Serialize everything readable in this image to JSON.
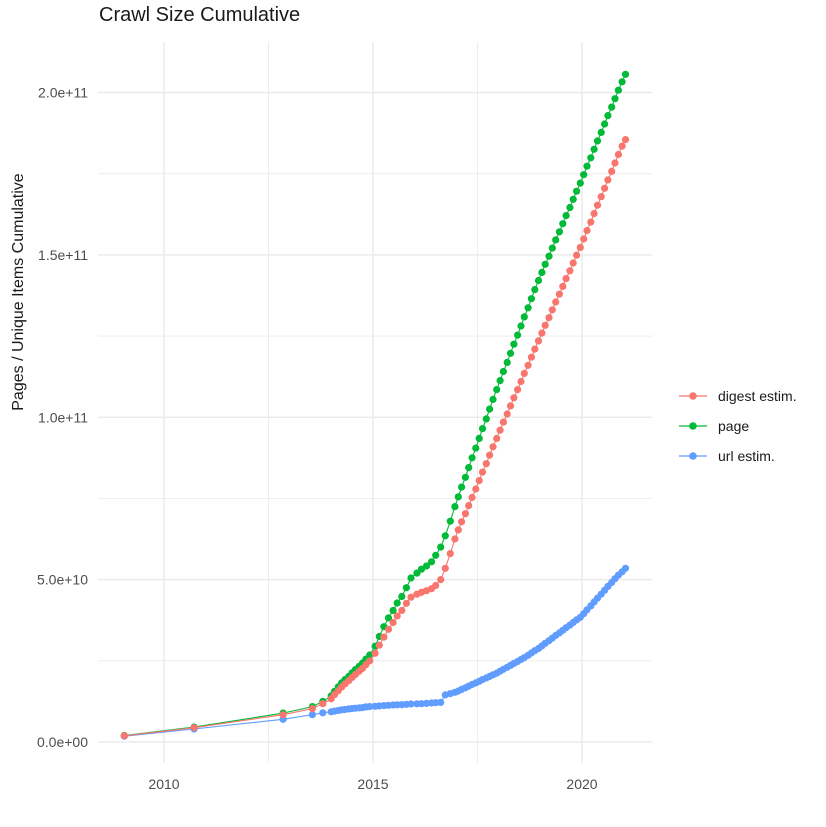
{
  "chart": {
    "title": "Crawl Size Cumulative",
    "ylabel": "Pages / Unique Items Cumulative",
    "xlabel": ""
  },
  "colors": {
    "digest": "#F8766D",
    "page": "#00BA38",
    "url": "#619CFF",
    "grid": "#EBEBEB",
    "tick_text": "#4d4d4d",
    "background": "#FFFFFF"
  },
  "chart_data": {
    "type": "line",
    "title": "Crawl Size Cumulative",
    "xlabel": "",
    "ylabel": "Pages / Unique Items Cumulative",
    "value_unit": "billions (1e9); y-axis shown in scientific notation",
    "grid": "major and minor, light gray on white",
    "legend_position": "right",
    "x_axis": {
      "ticks": [
        {
          "label": "2010",
          "value": 2010
        },
        {
          "label": "2015",
          "value": 2015
        },
        {
          "label": "2020",
          "value": 2020
        }
      ],
      "minor_ticks": [
        2012.5,
        2017.5
      ],
      "range": [
        2008.4,
        2021.7
      ]
    },
    "y_axis": {
      "ticks": [
        {
          "label": "0.0e+00",
          "value": 0
        },
        {
          "label": "5.0e+10",
          "value": 50
        },
        {
          "label": "1.0e+11",
          "value": 100
        },
        {
          "label": "1.5e+11",
          "value": 150
        },
        {
          "label": "2.0e+11",
          "value": 200
        }
      ],
      "minor_ticks": [
        25,
        75,
        125,
        175
      ],
      "range": [
        0,
        215.5
      ]
    },
    "legend": [
      {
        "label": "digest estim.",
        "series": "digest"
      },
      {
        "label": "page",
        "series": "page"
      },
      {
        "label": "url estim.",
        "series": "url"
      }
    ],
    "draw_order": [
      "page",
      "url",
      "digest"
    ],
    "x": [
      2009.05,
      2010.72,
      2012.85,
      2013.55,
      2013.8,
      2014.0,
      2014.08,
      2014.17,
      2014.25,
      2014.33,
      2014.42,
      2014.5,
      2014.58,
      2014.67,
      2014.75,
      2014.83,
      2014.92,
      2015.05,
      2015.15,
      2015.26,
      2015.37,
      2015.48,
      2015.58,
      2015.69,
      2015.8,
      2015.91,
      2016.05,
      2016.16,
      2016.28,
      2016.4,
      2016.5,
      2016.62,
      2016.73,
      2016.85,
      2016.96,
      2017.04,
      2017.12,
      2017.21,
      2017.29,
      2017.37,
      2017.46,
      2017.54,
      2017.62,
      2017.71,
      2017.79,
      2017.87,
      2017.96,
      2018.04,
      2018.12,
      2018.21,
      2018.29,
      2018.37,
      2018.46,
      2018.54,
      2018.62,
      2018.71,
      2018.79,
      2018.87,
      2018.96,
      2019.04,
      2019.12,
      2019.21,
      2019.29,
      2019.37,
      2019.46,
      2019.54,
      2019.62,
      2019.71,
      2019.79,
      2019.87,
      2019.96,
      2020.04,
      2020.12,
      2020.21,
      2020.29,
      2020.37,
      2020.46,
      2020.54,
      2020.62,
      2020.71,
      2020.79,
      2020.87,
      2020.96,
      2021.04
    ],
    "series": [
      {
        "name": "page",
        "color_key": "page",
        "values": [
          2.0,
          4.6,
          8.9,
          10.9,
          12.5,
          14.2,
          15.6,
          17.0,
          18.2,
          19.2,
          20.2,
          21.3,
          22.3,
          23.3,
          24.3,
          25.5,
          26.8,
          29.5,
          32.5,
          35.5,
          38.2,
          40.5,
          42.8,
          44.8,
          47.5,
          50.5,
          52.0,
          53.2,
          54.2,
          55.5,
          57.5,
          60.0,
          63.5,
          68.0,
          72.5,
          75.5,
          78.5,
          81.5,
          84.5,
          87.5,
          90.5,
          93.5,
          96.5,
          99.5,
          102.5,
          105.5,
          108.5,
          111.3,
          114.1,
          116.9,
          119.7,
          122.5,
          125.3,
          128.1,
          130.9,
          133.7,
          136.5,
          139.3,
          142.1,
          144.6,
          147.1,
          149.6,
          152.1,
          154.6,
          157.1,
          159.6,
          162.1,
          164.6,
          167.1,
          169.6,
          172.1,
          174.7,
          177.3,
          179.9,
          182.5,
          185.1,
          187.7,
          190.3,
          192.9,
          195.5,
          198.1,
          200.7,
          203.3,
          205.6
        ]
      },
      {
        "name": "url",
        "color_key": "url",
        "values": [
          1.8,
          4.0,
          7.0,
          8.4,
          9.0,
          9.3,
          9.5,
          9.7,
          9.9,
          10.0,
          10.2,
          10.3,
          10.4,
          10.5,
          10.6,
          10.8,
          10.9,
          11.0,
          11.1,
          11.2,
          11.3,
          11.4,
          11.45,
          11.5,
          11.6,
          11.7,
          11.75,
          11.8,
          11.9,
          12.0,
          12.1,
          12.2,
          14.5,
          14.9,
          15.3,
          15.7,
          16.2,
          16.7,
          17.2,
          17.7,
          18.2,
          18.7,
          19.2,
          19.7,
          20.2,
          20.7,
          21.2,
          21.8,
          22.4,
          23.0,
          23.6,
          24.2,
          24.8,
          25.4,
          26.0,
          26.7,
          27.4,
          28.1,
          28.8,
          29.6,
          30.4,
          31.2,
          32.0,
          32.8,
          33.6,
          34.4,
          35.2,
          36.0,
          36.8,
          37.6,
          38.4,
          39.5,
          40.7,
          41.9,
          43.1,
          44.3,
          45.5,
          46.7,
          47.9,
          49.1,
          50.3,
          51.4,
          52.4,
          53.5
        ]
      },
      {
        "name": "digest",
        "color_key": "digest",
        "values": [
          1.9,
          4.4,
          8.4,
          10.3,
          11.8,
          13.3,
          14.6,
          15.8,
          16.9,
          17.9,
          18.9,
          19.9,
          20.8,
          21.8,
          22.7,
          23.8,
          25.0,
          27.3,
          29.8,
          32.3,
          34.7,
          36.8,
          38.8,
          40.5,
          42.7,
          44.6,
          45.5,
          46.1,
          46.6,
          47.2,
          48.2,
          50.0,
          53.5,
          58.0,
          62.5,
          65.3,
          67.8,
          70.3,
          72.8,
          75.3,
          77.9,
          80.5,
          83.1,
          85.7,
          88.3,
          90.9,
          93.5,
          96.0,
          98.5,
          101.0,
          103.5,
          106.0,
          108.5,
          111.0,
          113.5,
          116.0,
          118.5,
          121.0,
          123.5,
          125.9,
          128.3,
          130.7,
          133.1,
          135.5,
          137.9,
          140.3,
          142.7,
          145.1,
          147.5,
          149.9,
          152.3,
          154.9,
          157.5,
          160.1,
          162.7,
          165.3,
          167.9,
          170.5,
          173.1,
          175.7,
          178.3,
          180.9,
          183.5,
          185.5
        ]
      }
    ]
  }
}
